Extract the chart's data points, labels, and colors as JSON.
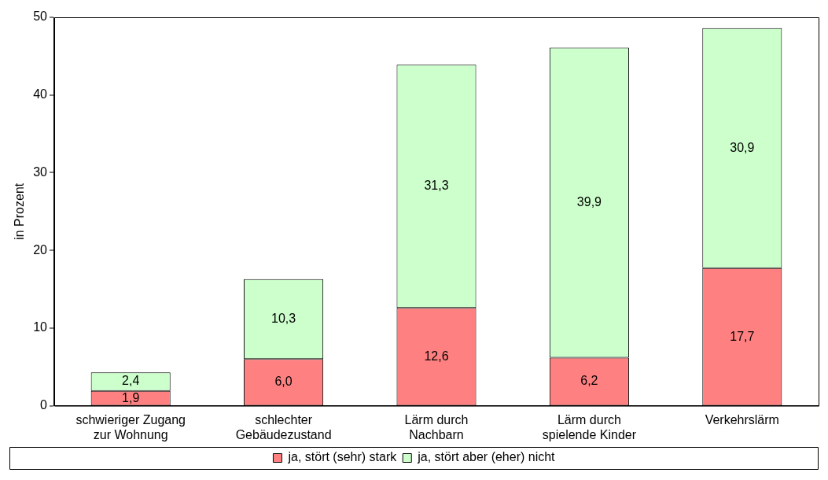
{
  "chart_data": {
    "type": "bar",
    "stacked": true,
    "ylabel": "in Prozent",
    "categories": [
      "schwieriger Zugang\nzur Wohnung",
      "schlechter\nGebäudezustand",
      "Lärm durch\nNachbarn",
      "Lärm durch\nspielende Kinder",
      "Verkehrslärm"
    ],
    "series": [
      {
        "name": "ja, stört (sehr) stark",
        "color": "#ff8080",
        "values": [
          1.9,
          6.0,
          12.6,
          6.2,
          17.7
        ],
        "value_labels": [
          "1,9",
          "6,0",
          "12,6",
          "6,2",
          "17,7"
        ]
      },
      {
        "name": "ja, stört aber (eher) nicht",
        "color": "#ccffcc",
        "values": [
          2.4,
          10.3,
          31.3,
          39.9,
          30.9
        ],
        "value_labels": [
          "2,4",
          "10,3",
          "31,3",
          "39,9",
          "30,9"
        ]
      }
    ],
    "ylim": [
      0,
      50
    ],
    "yticks": [
      0,
      10,
      20,
      30,
      40,
      50
    ],
    "grid": false,
    "legend": "bottom"
  }
}
